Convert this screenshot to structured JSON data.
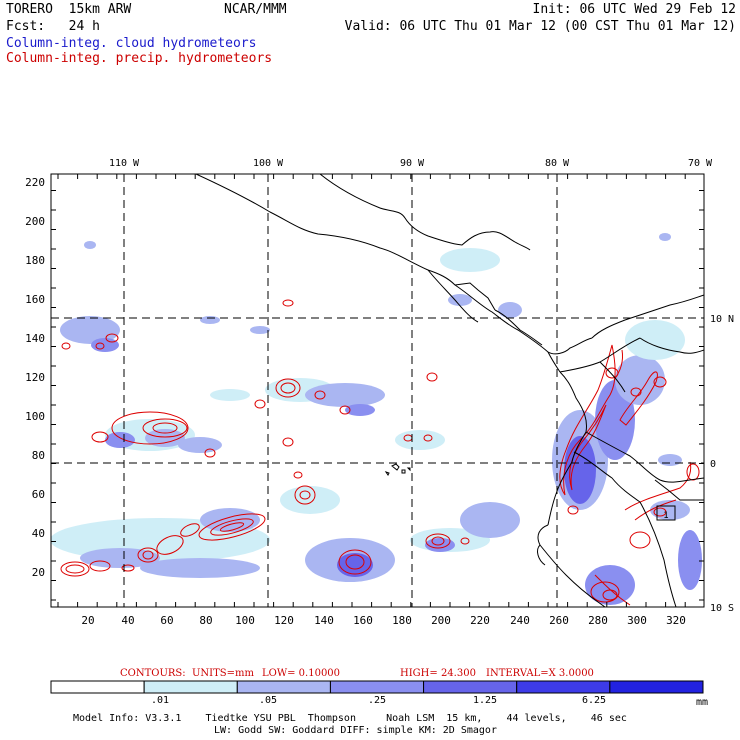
{
  "header": {
    "model": "TORERO  15km ARW",
    "center": "NCAR/MMM",
    "init": "Init: 06 UTC Wed 29 Feb 12",
    "fcst": "Fcst:   24 h",
    "valid": "Valid: 06 UTC Thu 01 Mar 12 (00 CST Thu 01 Mar 12)",
    "field1": "Column-integ. cloud hydrometeors",
    "field2": "Column-integ. precip. hydrometeors"
  },
  "map": {
    "lon_labels": [
      "110 W",
      "100 W",
      "90 W",
      "80 W",
      "70 W"
    ],
    "lat_labels": [
      "10 N",
      "0",
      "10 S"
    ],
    "x_ticks": [
      "20",
      "40",
      "60",
      "80",
      "100",
      "120",
      "140",
      "160",
      "180",
      "200",
      "220",
      "240",
      "260",
      "280",
      "300",
      "320"
    ],
    "y_ticks": [
      "20",
      "40",
      "60",
      "80",
      "100",
      "120",
      "140",
      "160",
      "180",
      "200",
      "220"
    ],
    "box_label": "1"
  },
  "contour_info": {
    "contours": "CONTOURS:",
    "units": "UNITS=mm",
    "low": "LOW= 0.10000",
    "high": "HIGH=  24.300",
    "interval": "INTERVAL=X  3.0000"
  },
  "colorbar": {
    "labels": [
      ".01",
      ".05",
      ".25",
      "1.25",
      "6.25"
    ],
    "unit": "mm",
    "colors": [
      "#ffffff",
      "#cfeef7",
      "#aab6f2",
      "#8a8ff0",
      "#6664ea",
      "#3d3be8",
      "#2222e0"
    ]
  },
  "footer": {
    "line1": "Model Info: V3.3.1    Tiedtke YSU PBL  Thompson     Noah LSM  15 km,    44 levels,    46 sec",
    "line2": "LW: Godd SW: Goddard DIFF: simple KM: 2D Smagor"
  }
}
